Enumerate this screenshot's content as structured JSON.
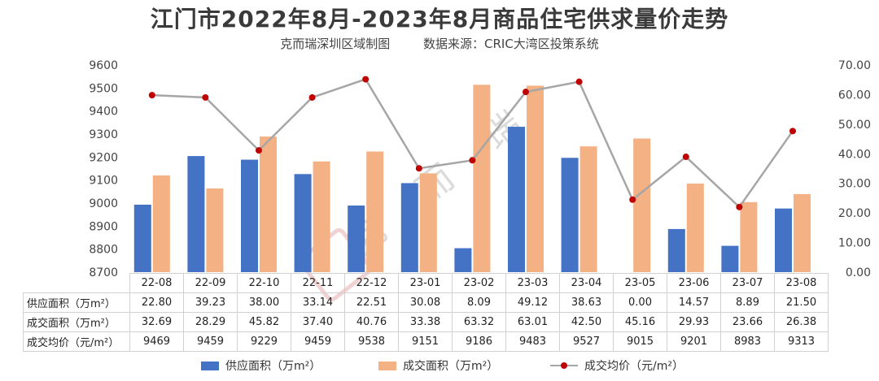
{
  "title": "江门市2022年8月-2023年8月商品住宅供求量价走势",
  "subtitle": {
    "brand": "克而瑞深圳区域制图",
    "source": "数据来源：CRIC大湾区投策系统"
  },
  "watermark": {
    "text": "克 而 瑞"
  },
  "colors": {
    "supply": "#4472c4",
    "deal": "#f4b183",
    "price_line": "#a6a6a6",
    "price_marker": "#c00000"
  },
  "chart_data": {
    "type": "bar",
    "categories": [
      "22-08",
      "22-09",
      "22-10",
      "22-11",
      "22-12",
      "23-01",
      "23-02",
      "23-03",
      "23-04",
      "23-05",
      "23-06",
      "23-07",
      "23-08"
    ],
    "left_axis": {
      "ylim": [
        8700,
        9600
      ],
      "ticks": [
        "8700",
        "8800",
        "8900",
        "9000",
        "9100",
        "9200",
        "9300",
        "9400",
        "9500",
        "9600"
      ]
    },
    "right_axis": {
      "ylim": [
        0,
        70
      ],
      "ticks": [
        "0.00",
        "10.00",
        "20.00",
        "30.00",
        "40.00",
        "50.00",
        "60.00",
        "70.00"
      ]
    },
    "series": [
      {
        "name": "供应面积（万m²）",
        "type": "bar",
        "axis": "right",
        "values": [
          22.8,
          39.23,
          38.0,
          33.14,
          22.51,
          30.08,
          8.09,
          49.12,
          38.63,
          0.0,
          14.57,
          8.89,
          21.5
        ],
        "labels": [
          "22.80",
          "39.23",
          "38.00",
          "33.14",
          "22.51",
          "30.08",
          "8.09",
          "49.12",
          "38.63",
          "0.00",
          "14.57",
          "8.89",
          "21.50"
        ]
      },
      {
        "name": "成交面积（万m²）",
        "type": "bar",
        "axis": "right",
        "values": [
          32.69,
          28.29,
          45.82,
          37.4,
          40.76,
          33.38,
          63.32,
          63.01,
          42.5,
          45.16,
          29.93,
          23.66,
          26.38
        ],
        "labels": [
          "32.69",
          "28.29",
          "45.82",
          "37.40",
          "40.76",
          "33.38",
          "63.32",
          "63.01",
          "42.50",
          "45.16",
          "29.93",
          "23.66",
          "26.38"
        ]
      },
      {
        "name": "成交均价（元/m²）",
        "type": "line",
        "axis": "left",
        "values": [
          9469,
          9459,
          9229,
          9459,
          9538,
          9151,
          9186,
          9483,
          9527,
          9015,
          9201,
          8983,
          9313
        ],
        "labels": [
          "9469",
          "9459",
          "9229",
          "9459",
          "9538",
          "9151",
          "9186",
          "9483",
          "9527",
          "9015",
          "9201",
          "8983",
          "9313"
        ]
      }
    ],
    "legend": "bottom",
    "grid": false
  }
}
